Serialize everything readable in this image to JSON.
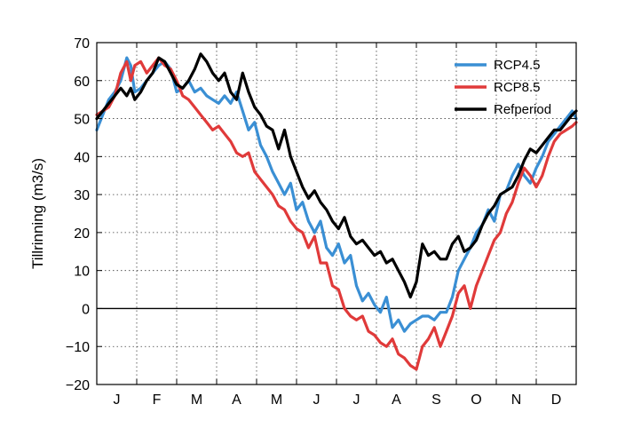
{
  "chart_data": {
    "type": "line",
    "title": "",
    "xlabel": "",
    "ylabel": "Tillrinning (m3/s)",
    "ylim": [
      -20,
      70
    ],
    "yticks": [
      -20,
      -10,
      0,
      10,
      20,
      30,
      40,
      50,
      60,
      70
    ],
    "xlim": [
      0,
      12
    ],
    "month_labels": [
      "J",
      "F",
      "M",
      "A",
      "M",
      "J",
      "J",
      "A",
      "S",
      "O",
      "N",
      "D"
    ],
    "grid": true,
    "zero_line": true,
    "legend_position": "upper right",
    "series": [
      {
        "name": "RCP4.5",
        "color": "#3a8fd4",
        "x": [
          0,
          0.15,
          0.3,
          0.45,
          0.6,
          0.75,
          0.85,
          0.95,
          1.1,
          1.25,
          1.4,
          1.55,
          1.7,
          1.85,
          2.0,
          2.15,
          2.3,
          2.45,
          2.6,
          2.75,
          2.9,
          3.05,
          3.2,
          3.35,
          3.5,
          3.65,
          3.8,
          3.95,
          4.1,
          4.25,
          4.4,
          4.55,
          4.7,
          4.85,
          5.0,
          5.15,
          5.3,
          5.45,
          5.6,
          5.75,
          5.9,
          6.05,
          6.2,
          6.35,
          6.5,
          6.65,
          6.8,
          6.95,
          7.1,
          7.25,
          7.4,
          7.55,
          7.7,
          7.85,
          8.0,
          8.15,
          8.3,
          8.45,
          8.6,
          8.75,
          8.9,
          9.05,
          9.2,
          9.35,
          9.5,
          9.65,
          9.8,
          9.95,
          10.1,
          10.25,
          10.4,
          10.55,
          10.7,
          10.85,
          11.0,
          11.15,
          11.3,
          11.45,
          11.6,
          11.75,
          11.9,
          12.0
        ],
        "values": [
          47,
          51,
          55,
          57,
          60,
          66,
          64,
          57,
          58,
          60,
          62,
          64,
          65,
          63,
          57,
          58,
          60,
          57,
          58,
          56,
          55,
          54,
          56,
          54,
          57,
          52,
          47,
          49,
          43,
          40,
          36,
          33,
          30,
          33,
          26,
          28,
          23,
          20,
          23,
          16,
          14,
          17,
          12,
          14,
          6,
          2,
          4,
          1,
          -1,
          3,
          -5,
          -3,
          -6,
          -4,
          -3,
          -2,
          -2,
          -3,
          -1,
          -1,
          3,
          10,
          13,
          16,
          20,
          22,
          26,
          23,
          30,
          31,
          35,
          38,
          35,
          33,
          37,
          40,
          44,
          46,
          48,
          50,
          52,
          50
        ]
      },
      {
        "name": "RCP8.5",
        "color": "#e03a3a",
        "x": [
          0,
          0.15,
          0.3,
          0.45,
          0.6,
          0.75,
          0.85,
          0.95,
          1.1,
          1.25,
          1.4,
          1.55,
          1.7,
          1.85,
          2.0,
          2.15,
          2.3,
          2.45,
          2.6,
          2.75,
          2.9,
          3.05,
          3.2,
          3.35,
          3.5,
          3.65,
          3.8,
          3.95,
          4.1,
          4.25,
          4.4,
          4.55,
          4.7,
          4.85,
          5.0,
          5.15,
          5.3,
          5.45,
          5.6,
          5.75,
          5.9,
          6.05,
          6.2,
          6.35,
          6.5,
          6.65,
          6.8,
          6.95,
          7.1,
          7.25,
          7.4,
          7.55,
          7.7,
          7.85,
          8.0,
          8.15,
          8.3,
          8.45,
          8.6,
          8.75,
          8.9,
          9.05,
          9.2,
          9.35,
          9.5,
          9.65,
          9.8,
          9.95,
          10.1,
          10.25,
          10.4,
          10.55,
          10.7,
          10.85,
          11.0,
          11.15,
          11.3,
          11.45,
          11.6,
          11.75,
          11.9,
          12.0
        ],
        "values": [
          51,
          52,
          53,
          56,
          62,
          65,
          60,
          64,
          65,
          62,
          64,
          66,
          64,
          63,
          60,
          56,
          55,
          53,
          51,
          49,
          47,
          48,
          46,
          44,
          41,
          40,
          41,
          36,
          34,
          32,
          30,
          27,
          26,
          23,
          21,
          20,
          16,
          19,
          12,
          12,
          6,
          5,
          0,
          -2,
          -3,
          -2,
          -6,
          -7,
          -9,
          -10,
          -8,
          -12,
          -13,
          -15,
          -16,
          -10,
          -8,
          -5,
          -10,
          -6,
          -2,
          4,
          6,
          0,
          6,
          10,
          14,
          18,
          20,
          25,
          28,
          33,
          37,
          35,
          32,
          35,
          40,
          44,
          46,
          47,
          48,
          49
        ]
      },
      {
        "name": "Refperiod",
        "color": "#000000",
        "x": [
          0,
          0.15,
          0.3,
          0.45,
          0.6,
          0.75,
          0.85,
          0.95,
          1.1,
          1.25,
          1.4,
          1.55,
          1.7,
          1.85,
          2.0,
          2.15,
          2.3,
          2.45,
          2.6,
          2.75,
          2.9,
          3.05,
          3.2,
          3.35,
          3.5,
          3.65,
          3.8,
          3.95,
          4.1,
          4.25,
          4.4,
          4.55,
          4.7,
          4.85,
          5.0,
          5.15,
          5.3,
          5.45,
          5.6,
          5.75,
          5.9,
          6.05,
          6.2,
          6.35,
          6.5,
          6.65,
          6.8,
          6.95,
          7.1,
          7.25,
          7.4,
          7.55,
          7.7,
          7.85,
          8.0,
          8.15,
          8.3,
          8.45,
          8.6,
          8.75,
          8.9,
          9.05,
          9.2,
          9.35,
          9.5,
          9.65,
          9.8,
          9.95,
          10.1,
          10.25,
          10.4,
          10.55,
          10.7,
          10.85,
          11.0,
          11.15,
          11.3,
          11.45,
          11.6,
          11.75,
          11.9,
          12.0
        ],
        "values": [
          50,
          52,
          54,
          56,
          58,
          56,
          58,
          55,
          57,
          60,
          62,
          66,
          65,
          62,
          59,
          58,
          60,
          63,
          67,
          65,
          62,
          60,
          62,
          57,
          55,
          62,
          57,
          53,
          51,
          48,
          47,
          42,
          47,
          40,
          36,
          32,
          29,
          31,
          28,
          26,
          23,
          21,
          24,
          19,
          17,
          18,
          16,
          14,
          15,
          12,
          13,
          10,
          7,
          3,
          7,
          17,
          14,
          15,
          13,
          13,
          17,
          19,
          15,
          16,
          18,
          22,
          25,
          27,
          30,
          31,
          32,
          35,
          39,
          42,
          41,
          43,
          45,
          47,
          47,
          49,
          51,
          52
        ]
      }
    ]
  }
}
